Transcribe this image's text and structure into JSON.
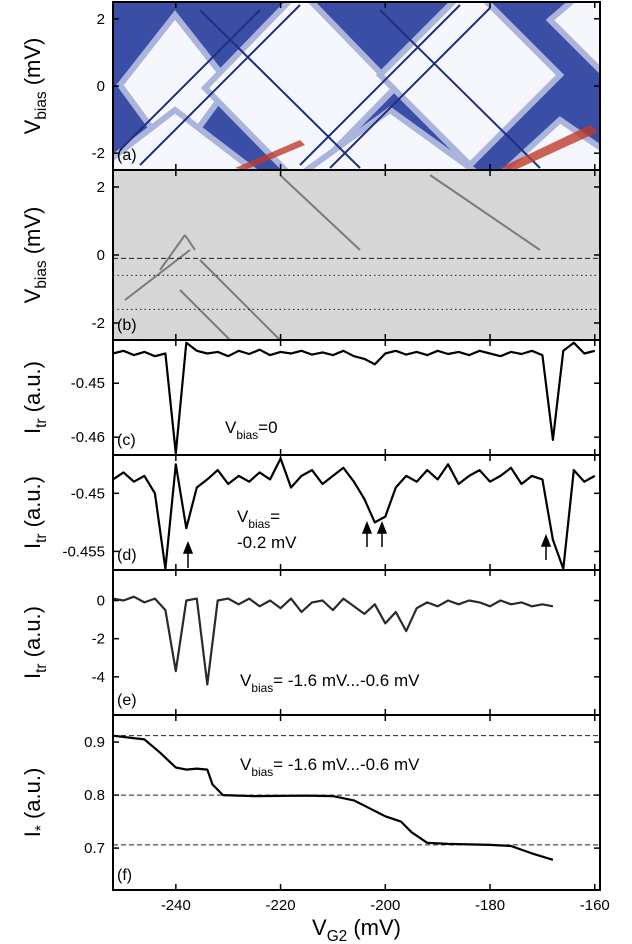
{
  "chart_data": [
    {
      "type": "heatmap",
      "panel_label": "(a)",
      "ylabel": {
        "text": "V",
        "sub": "bias",
        "rest": " (mV)"
      },
      "xlim": [
        -252,
        -159
      ],
      "ylim": [
        -2.5,
        2.5
      ],
      "yticks": [
        2,
        0,
        -2
      ]
    },
    {
      "type": "heatmap",
      "panel_label": "(b)",
      "ylabel": {
        "text": "V",
        "sub": "bias",
        "rest": " (mV)"
      },
      "xlim": [
        -252,
        -159
      ],
      "ylim": [
        -2.5,
        2.5
      ],
      "yticks": [
        2,
        0,
        -2
      ],
      "hlines": [
        -0.1,
        -0.6,
        -1.6
      ],
      "hline_styles": [
        "dashed",
        "dotted",
        "dotted"
      ]
    },
    {
      "type": "line",
      "panel_label": "(c)",
      "ylabel": {
        "text": "I",
        "sub": "tr",
        "rest": " (a.u.)"
      },
      "annotation": {
        "text": "V",
        "sub": "bias",
        "rest": "=0"
      },
      "xlim": [
        -252,
        -159
      ],
      "ylim": [
        -0.4633,
        -0.442
      ],
      "yticks": [
        -0.45,
        -0.46
      ],
      "color": "#000000",
      "x": [
        -252,
        -250,
        -248,
        -246,
        -244,
        -242,
        -240,
        -238,
        -236,
        -234,
        -232,
        -230,
        -228,
        -226,
        -224,
        -222,
        -220,
        -218,
        -216,
        -214,
        -212,
        -210,
        -208,
        -206,
        -204,
        -202,
        -200,
        -198,
        -196,
        -194,
        -192,
        -190,
        -188,
        -186,
        -184,
        -182,
        -180,
        -178,
        -176,
        -174,
        -172,
        -170,
        -168,
        -166,
        -164,
        -162,
        -160
      ],
      "values": [
        -0.4445,
        -0.444,
        -0.4448,
        -0.4442,
        -0.445,
        -0.4445,
        -0.463,
        -0.4425,
        -0.444,
        -0.4445,
        -0.4442,
        -0.445,
        -0.444,
        -0.4446,
        -0.4438,
        -0.4448,
        -0.4442,
        -0.4445,
        -0.444,
        -0.4447,
        -0.4443,
        -0.4448,
        -0.444,
        -0.445,
        -0.4455,
        -0.4465,
        -0.4445,
        -0.444,
        -0.4447,
        -0.4442,
        -0.4448,
        -0.444,
        -0.4446,
        -0.4442,
        -0.4448,
        -0.444,
        -0.4445,
        -0.445,
        -0.4442,
        -0.4446,
        -0.444,
        -0.4448,
        -0.4605,
        -0.444,
        -0.4425,
        -0.4445,
        -0.444
      ]
    },
    {
      "type": "line",
      "panel_label": "(d)",
      "ylabel": {
        "text": "I",
        "sub": "tr",
        "rest": " (a.u.)"
      },
      "annotation": {
        "text": "V",
        "sub": "bias",
        "rest": "="
      },
      "annotation2": "-0.2 mV",
      "xlim": [
        -252,
        -159
      ],
      "ylim": [
        -0.4566,
        -0.4467
      ],
      "yticks": [
        -0.45,
        -0.455
      ],
      "color": "#000000",
      "x": [
        -252,
        -250,
        -248,
        -246,
        -244,
        -242,
        -240,
        -238,
        -236,
        -234,
        -232,
        -230,
        -228,
        -226,
        -224,
        -222,
        -220,
        -218,
        -216,
        -214,
        -212,
        -210,
        -208,
        -206,
        -204,
        -202,
        -200,
        -198,
        -196,
        -194,
        -192,
        -190,
        -188,
        -186,
        -184,
        -182,
        -180,
        -178,
        -176,
        -174,
        -172,
        -170,
        -168,
        -166,
        -164,
        -162,
        -160
      ],
      "values": [
        -0.4488,
        -0.4482,
        -0.449,
        -0.4485,
        -0.45,
        -0.4565,
        -0.4475,
        -0.453,
        -0.4495,
        -0.4488,
        -0.448,
        -0.4492,
        -0.4485,
        -0.449,
        -0.4482,
        -0.4488,
        -0.447,
        -0.4495,
        -0.4485,
        -0.448,
        -0.4492,
        -0.4485,
        -0.4478,
        -0.449,
        -0.4505,
        -0.4525,
        -0.452,
        -0.4495,
        -0.4485,
        -0.449,
        -0.448,
        -0.4488,
        -0.4475,
        -0.4492,
        -0.4485,
        -0.448,
        -0.449,
        -0.4485,
        -0.4478,
        -0.4492,
        -0.4485,
        -0.4488,
        -0.454,
        -0.4565,
        -0.448,
        -0.449,
        -0.4485
      ]
    },
    {
      "type": "line",
      "panel_label": "(e)",
      "ylabel": {
        "text": "I",
        "sub": "tr",
        "rest": " (a.u.)"
      },
      "annotation": {
        "text": "V",
        "sub": "bias",
        "rest": "= -1.6 mV...-0.6 mV"
      },
      "xlim": [
        -252,
        -159
      ],
      "ylim": [
        -6,
        1.6
      ],
      "yticks": [
        0,
        -2,
        -4
      ],
      "color": "#2a2a2a",
      "x": [
        -252,
        -250,
        -248,
        -246,
        -244,
        -242,
        -240,
        -238,
        -236,
        -234,
        -232,
        -230,
        -228,
        -226,
        -224,
        -222,
        -220,
        -218,
        -216,
        -214,
        -212,
        -210,
        -208,
        -206,
        -204,
        -202,
        -200,
        -198,
        -196,
        -194,
        -192,
        -190,
        -188,
        -186,
        -184,
        -182,
        -180,
        -178,
        -176,
        -174,
        -172,
        -170,
        -168
      ],
      "values": [
        0.1,
        0,
        0.2,
        -0.1,
        0.1,
        -0.5,
        -3.7,
        0,
        0.1,
        -4.4,
        0,
        0.1,
        -0.2,
        0.1,
        -0.3,
        0,
        -0.4,
        0.1,
        -0.6,
        -0.1,
        0,
        -0.5,
        0.1,
        -0.3,
        -0.7,
        -0.2,
        -1.2,
        -0.6,
        -1.6,
        -0.4,
        -0.1,
        -0.3,
        0,
        -0.2,
        0,
        -0.1,
        -0.3,
        0,
        -0.2,
        -0.1,
        -0.3,
        -0.2,
        -0.3
      ]
    },
    {
      "type": "line",
      "panel_label": "(f)",
      "ylabel": {
        "text": "I",
        "sub": "*",
        "rest": " (a.u.)"
      },
      "annotation": {
        "text": "V",
        "sub": "bias",
        "rest": "= -1.6 mV...-0.6 mV"
      },
      "xlabel": {
        "text": "V",
        "sub": "G2",
        "rest": " (mV)"
      },
      "xlim": [
        -252,
        -159
      ],
      "ylim": [
        0.621,
        0.951
      ],
      "yticks": [
        0.9,
        0.8,
        0.7
      ],
      "xticks": [
        -240,
        -220,
        -200,
        -180,
        -160
      ],
      "hlines": [
        0.912,
        0.8,
        0.706
      ],
      "hline_styles": [
        "dashed",
        "dashed",
        "dashed"
      ],
      "color": "#000000",
      "x": [
        -252,
        -246,
        -243,
        -240,
        -238,
        -236,
        -234,
        -233,
        -231,
        -225,
        -215,
        -210,
        -206,
        -203,
        -200,
        -197,
        -195,
        -192,
        -188,
        -184,
        -180,
        -176,
        -172,
        -168
      ],
      "values": [
        0.912,
        0.905,
        0.88,
        0.852,
        0.848,
        0.85,
        0.848,
        0.82,
        0.8,
        0.798,
        0.799,
        0.798,
        0.79,
        0.775,
        0.76,
        0.75,
        0.73,
        0.71,
        0.708,
        0.707,
        0.706,
        0.704,
        0.69,
        0.678
      ]
    }
  ]
}
